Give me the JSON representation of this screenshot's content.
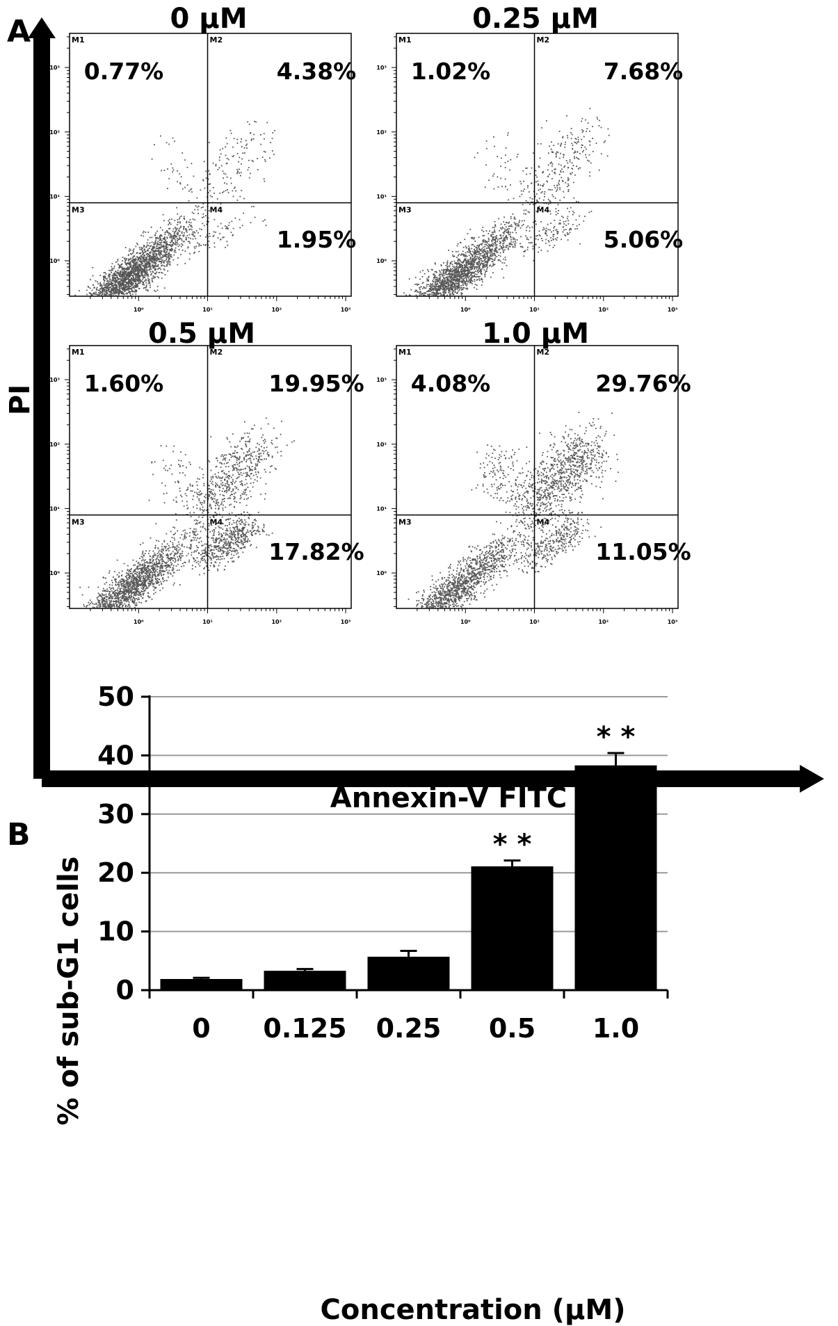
{
  "panel_a": {
    "letter": "A",
    "y_axis_title": "PI",
    "x_axis_title": "Annexin-V FITC",
    "gate_labels": [
      "M1",
      "M2",
      "M3",
      "M4"
    ],
    "decade_labels": [
      "10⁰",
      "10¹",
      "10²",
      "10³"
    ]
  },
  "panel_b": {
    "letter": "B"
  },
  "colors": {
    "dots": "#555555",
    "bars": "#000000",
    "gridlines": "#999999"
  },
  "chart_data": [
    {
      "type": "scatter",
      "name": "flow-cytometry",
      "scale": "log",
      "xlabel": "Annexin-V FITC",
      "ylabel": "PI",
      "xlim": [
        1,
        1000
      ],
      "ylim": [
        1,
        1000
      ],
      "panels": [
        {
          "title": "0 µM",
          "quadrants": {
            "M1": "0.77%",
            "M2": "4.38%",
            "M3": "",
            "M4": "1.95%"
          }
        },
        {
          "title": "0.25 µM",
          "quadrants": {
            "M1": "1.02%",
            "M2": "7.68%",
            "M3": "",
            "M4": "5.06%"
          }
        },
        {
          "title": "0.5 µM",
          "quadrants": {
            "M1": "1.60%",
            "M2": "19.95%",
            "M3": "",
            "M4": "17.82%"
          }
        },
        {
          "title": "1.0 µM",
          "quadrants": {
            "M1": "4.08%",
            "M2": "29.76%",
            "M3": "",
            "M4": "11.05%"
          }
        }
      ]
    },
    {
      "type": "bar",
      "categories": [
        "0",
        "0.125",
        "0.25",
        "0.5",
        "1.0"
      ],
      "values": [
        1.9,
        3.3,
        5.7,
        21.1,
        38.3
      ],
      "errors": [
        0.2,
        0.3,
        1.0,
        1.0,
        2.1
      ],
      "significance": [
        "",
        "",
        "",
        "* *",
        "* *"
      ],
      "xlabel": "Concentration (µM)",
      "ylabel": "% of sub-G1 cells",
      "ylim": [
        0,
        50
      ],
      "yticks": [
        0,
        10,
        20,
        30,
        40,
        50
      ],
      "grid": true
    }
  ]
}
